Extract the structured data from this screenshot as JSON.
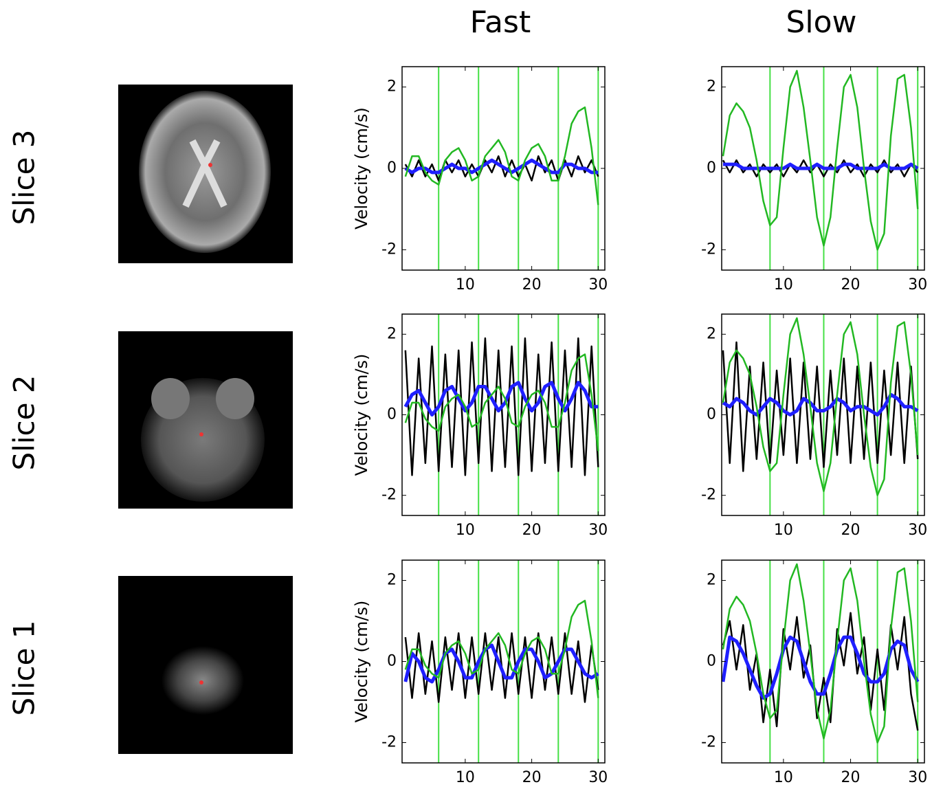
{
  "columns": [
    "Fast",
    "Slow"
  ],
  "rows": [
    "Slice 3",
    "Slice 2",
    "Slice 1"
  ],
  "chart_data": [
    {
      "type": "line",
      "ylabel": "Velocity (cm/s)",
      "xlim": [
        0.5,
        31
      ],
      "ylim": [
        -2.5,
        2.5
      ],
      "xticks": [
        10,
        20,
        30
      ],
      "yticks": [
        -2,
        0,
        2
      ],
      "vlines": [
        6,
        12,
        18,
        24,
        30
      ],
      "vline_color": "#44e044",
      "x": [
        1,
        2,
        3,
        4,
        5,
        6,
        7,
        8,
        9,
        10,
        11,
        12,
        13,
        14,
        15,
        16,
        17,
        18,
        19,
        20,
        21,
        22,
        23,
        24,
        25,
        26,
        27,
        28,
        29,
        30
      ],
      "series": [
        {
          "color": "#000000",
          "values": [
            0.1,
            -0.2,
            0.2,
            -0.2,
            0.1,
            -0.3,
            0.2,
            -0.1,
            0.2,
            -0.2,
            0.1,
            -0.2,
            0.2,
            -0.1,
            0.3,
            -0.2,
            0.2,
            -0.2,
            0.1,
            -0.3,
            0.3,
            -0.1,
            0.2,
            -0.3,
            0.2,
            -0.2,
            0.3,
            -0.1,
            0.2,
            -0.2
          ]
        },
        {
          "color": "#1f1fff",
          "values": [
            0,
            -0.1,
            0,
            0,
            -0.1,
            -0.1,
            0,
            0.1,
            0,
            0,
            -0.1,
            0,
            0.1,
            0.2,
            0.1,
            0,
            -0.1,
            0,
            0.1,
            0.2,
            0.1,
            0,
            -0.1,
            -0.1,
            0.1,
            0.1,
            0,
            0,
            -0.1,
            -0.1
          ]
        },
        {
          "color": "#22b822",
          "values": [
            -0.2,
            0.3,
            0.3,
            -0.1,
            -0.3,
            -0.4,
            0.2,
            0.4,
            0.5,
            0.2,
            -0.3,
            -0.2,
            0.3,
            0.5,
            0.7,
            0.4,
            -0.2,
            -0.3,
            0.2,
            0.5,
            0.6,
            0.3,
            -0.3,
            -0.3,
            0.3,
            1.1,
            1.4,
            1.5,
            0.5,
            -0.9
          ]
        }
      ]
    },
    {
      "type": "line",
      "xlim": [
        0.8,
        31
      ],
      "ylim": [
        -2.5,
        2.5
      ],
      "xticks": [
        10,
        20,
        30
      ],
      "yticks": [
        -2,
        0,
        2
      ],
      "vlines": [
        8,
        16,
        24,
        30
      ],
      "vline_color": "#44e044",
      "x": [
        1,
        2,
        3,
        4,
        5,
        6,
        7,
        8,
        9,
        10,
        11,
        12,
        13,
        14,
        15,
        16,
        17,
        18,
        19,
        20,
        21,
        22,
        23,
        24,
        25,
        26,
        27,
        28,
        29,
        30
      ],
      "series": [
        {
          "color": "#000000",
          "values": [
            0.2,
            -0.1,
            0.2,
            -0.1,
            0.1,
            -0.2,
            0.1,
            -0.1,
            0.1,
            -0.2,
            0.1,
            -0.1,
            0.2,
            -0.1,
            0.1,
            -0.2,
            0.1,
            -0.1,
            0.2,
            -0.1,
            0.1,
            -0.2,
            0.1,
            -0.1,
            0.2,
            -0.1,
            0.1,
            -0.2,
            0.1,
            -0.1
          ]
        },
        {
          "color": "#1f1fff",
          "values": [
            0.1,
            0.1,
            0.1,
            0,
            0,
            0,
            0,
            0,
            0,
            0,
            0.1,
            0,
            0,
            0,
            0.1,
            0,
            0,
            0,
            0.1,
            0.1,
            0,
            0,
            0,
            0,
            0.1,
            0,
            0,
            0,
            0.1,
            0
          ]
        },
        {
          "color": "#22b822",
          "values": [
            0.3,
            1.3,
            1.6,
            1.4,
            1,
            0.2,
            -0.8,
            -1.4,
            -1.2,
            0.5,
            2,
            2.4,
            1.5,
            0.2,
            -1.2,
            -1.9,
            -1.2,
            0.5,
            2,
            2.3,
            1.5,
            0,
            -1.3,
            -2,
            -1.6,
            0.8,
            2.2,
            2.3,
            1,
            -1
          ]
        }
      ]
    },
    {
      "type": "line",
      "ylabel": "Velocity (cm/s)",
      "xlim": [
        0.5,
        31
      ],
      "ylim": [
        -2.5,
        2.5
      ],
      "xticks": [
        10,
        20,
        30
      ],
      "yticks": [
        -2,
        0,
        2
      ],
      "vlines": [
        6,
        12,
        18,
        24,
        30
      ],
      "vline_color": "#44e044",
      "x": [
        1,
        2,
        3,
        4,
        5,
        6,
        7,
        8,
        9,
        10,
        11,
        12,
        13,
        14,
        15,
        16,
        17,
        18,
        19,
        20,
        21,
        22,
        23,
        24,
        25,
        26,
        27,
        28,
        29,
        30
      ],
      "series": [
        {
          "color": "#000000",
          "values": [
            1.6,
            -1.5,
            1.4,
            -1.2,
            1.7,
            -1.4,
            1.5,
            -1.3,
            1.6,
            -1.5,
            1.8,
            -1.2,
            1.9,
            -1.4,
            1.6,
            -1.3,
            1.7,
            -1.5,
            1.9,
            -1.4,
            1.5,
            -1.2,
            1.8,
            -1.4,
            1.6,
            -1.3,
            1.9,
            -1.5,
            1.7,
            -1.3
          ]
        },
        {
          "color": "#1f1fff",
          "values": [
            0.2,
            0.5,
            0.6,
            0.3,
            0,
            0.2,
            0.6,
            0.7,
            0.4,
            0.1,
            0.3,
            0.7,
            0.7,
            0.4,
            0.1,
            0.3,
            0.7,
            0.8,
            0.4,
            0.1,
            0.3,
            0.7,
            0.8,
            0.4,
            0.1,
            0.4,
            0.8,
            0.6,
            0.2,
            0.2
          ]
        },
        {
          "color": "#22b822",
          "values": [
            -0.2,
            0.3,
            0.3,
            -0.1,
            -0.3,
            -0.4,
            0.2,
            0.4,
            0.5,
            0.2,
            -0.3,
            -0.2,
            0.3,
            0.5,
            0.7,
            0.4,
            -0.2,
            -0.3,
            0.2,
            0.5,
            0.6,
            0.3,
            -0.3,
            -0.3,
            0.3,
            1.1,
            1.4,
            1.5,
            0.5,
            -0.9
          ]
        }
      ]
    },
    {
      "type": "line",
      "xlim": [
        0.8,
        31
      ],
      "ylim": [
        -2.5,
        2.5
      ],
      "xticks": [
        10,
        20,
        30
      ],
      "yticks": [
        -2,
        0,
        2
      ],
      "vlines": [
        8,
        16,
        24,
        30
      ],
      "vline_color": "#44e044",
      "x": [
        1,
        2,
        3,
        4,
        5,
        6,
        7,
        8,
        9,
        10,
        11,
        12,
        13,
        14,
        15,
        16,
        17,
        18,
        19,
        20,
        21,
        22,
        23,
        24,
        25,
        26,
        27,
        28,
        29,
        30
      ],
      "series": [
        {
          "color": "#000000",
          "values": [
            1.6,
            -1.2,
            1.8,
            -1.4,
            1.2,
            -1.1,
            1.3,
            -1.2,
            1.1,
            -1.0,
            1.4,
            -1.2,
            1.3,
            -1.1,
            1.2,
            -1.3,
            1.1,
            -1.0,
            1.4,
            -1.2,
            1.2,
            -1.1,
            1.3,
            -1.2,
            1.1,
            -1.0,
            1.3,
            -1.2,
            1.2,
            -1.1
          ]
        },
        {
          "color": "#1f1fff",
          "values": [
            0.3,
            0.2,
            0.4,
            0.3,
            0.1,
            0,
            0.2,
            0.4,
            0.3,
            0.1,
            0,
            0.1,
            0.4,
            0.3,
            0.1,
            0.1,
            0.2,
            0.4,
            0.3,
            0.1,
            0.2,
            0.2,
            0.1,
            0,
            0.2,
            0.5,
            0.4,
            0.2,
            0.2,
            0.1
          ]
        },
        {
          "color": "#22b822",
          "values": [
            0.3,
            1.3,
            1.6,
            1.4,
            1,
            0.2,
            -0.8,
            -1.4,
            -1.2,
            0.5,
            2,
            2.4,
            1.5,
            0.2,
            -1.2,
            -1.9,
            -1.2,
            0.5,
            2,
            2.3,
            1.5,
            0,
            -1.3,
            -2,
            -1.6,
            0.8,
            2.2,
            2.3,
            1,
            -1
          ]
        }
      ]
    },
    {
      "type": "line",
      "ylabel": "Velocity (cm/s)",
      "xlim": [
        0.5,
        31
      ],
      "ylim": [
        -2.5,
        2.5
      ],
      "xticks": [
        10,
        20,
        30
      ],
      "yticks": [
        -2,
        0,
        2
      ],
      "vlines": [
        6,
        12,
        18,
        24,
        30
      ],
      "vline_color": "#44e044",
      "x": [
        1,
        2,
        3,
        4,
        5,
        6,
        7,
        8,
        9,
        10,
        11,
        12,
        13,
        14,
        15,
        16,
        17,
        18,
        19,
        20,
        21,
        22,
        23,
        24,
        25,
        26,
        27,
        28,
        29,
        30
      ],
      "series": [
        {
          "color": "#000000",
          "values": [
            0.6,
            -0.9,
            0.7,
            -0.8,
            0.5,
            -1,
            0.6,
            -0.7,
            0.7,
            -0.9,
            0.6,
            -0.8,
            0.7,
            -0.7,
            0.6,
            -0.9,
            0.7,
            -0.8,
            0.6,
            -0.9,
            0.7,
            -0.7,
            0.6,
            -0.8,
            0.7,
            -0.8,
            0.5,
            -1,
            0.4,
            -0.7
          ]
        },
        {
          "color": "#1f1fff",
          "values": [
            -0.5,
            0.2,
            0,
            -0.4,
            -0.5,
            -0.2,
            0.2,
            0.3,
            0,
            -0.4,
            -0.4,
            0,
            0.3,
            0.4,
            0,
            -0.4,
            -0.4,
            0,
            0.3,
            0.3,
            0,
            -0.4,
            -0.3,
            0,
            0.3,
            0.3,
            0,
            -0.3,
            -0.4,
            -0.3
          ]
        },
        {
          "color": "#22b822",
          "values": [
            -0.2,
            0.3,
            0.3,
            -0.1,
            -0.3,
            -0.4,
            0.2,
            0.4,
            0.5,
            0.2,
            -0.3,
            -0.2,
            0.3,
            0.5,
            0.7,
            0.4,
            -0.2,
            -0.3,
            0.2,
            0.5,
            0.6,
            0.3,
            -0.3,
            -0.3,
            0.3,
            1.1,
            1.4,
            1.5,
            0.5,
            -0.9
          ]
        }
      ]
    },
    {
      "type": "line",
      "xlim": [
        0.8,
        31
      ],
      "ylim": [
        -2.5,
        2.5
      ],
      "xticks": [
        10,
        20,
        30
      ],
      "yticks": [
        -2,
        0,
        2
      ],
      "vlines": [
        8,
        16,
        24,
        30
      ],
      "vline_color": "#44e044",
      "x": [
        1,
        2,
        3,
        4,
        5,
        6,
        7,
        8,
        9,
        10,
        11,
        12,
        13,
        14,
        15,
        16,
        17,
        18,
        19,
        20,
        21,
        22,
        23,
        24,
        25,
        26,
        27,
        28,
        29,
        30
      ],
      "series": [
        {
          "color": "#000000",
          "values": [
            0.4,
            1,
            -0.2,
            0.9,
            -0.7,
            0.2,
            -1.5,
            -0.2,
            -1.6,
            0.8,
            -0.2,
            1.1,
            -0.4,
            0.4,
            -1.4,
            -0.4,
            -1.5,
            0.8,
            -0.1,
            1.2,
            -0.3,
            0.6,
            -1.2,
            0.3,
            -1.2,
            0.9,
            -0.2,
            1.1,
            -0.8,
            -1.7
          ]
        },
        {
          "color": "#1f1fff",
          "values": [
            -0.5,
            0.6,
            0.5,
            0.2,
            -0.2,
            -0.6,
            -0.9,
            -0.8,
            -0.3,
            0.3,
            0.6,
            0.5,
            0,
            -0.5,
            -0.8,
            -0.8,
            -0.3,
            0.3,
            0.6,
            0.6,
            0.2,
            -0.3,
            -0.5,
            -0.5,
            -0.3,
            0.3,
            0.5,
            0.4,
            -0.2,
            -0.5
          ]
        },
        {
          "color": "#22b822",
          "values": [
            0.3,
            1.3,
            1.6,
            1.4,
            1,
            0.2,
            -0.8,
            -1.4,
            -1.2,
            0.5,
            2,
            2.4,
            1.5,
            0.2,
            -1.2,
            -1.9,
            -1.2,
            0.5,
            2,
            2.3,
            1.5,
            0,
            -1.3,
            -2,
            -1.6,
            0.8,
            2.2,
            2.3,
            1,
            -1
          ]
        }
      ]
    }
  ]
}
